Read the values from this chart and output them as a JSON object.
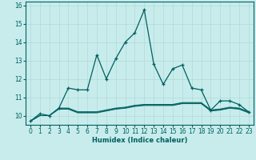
{
  "title": "",
  "xlabel": "Humidex (Indice chaleur)",
  "ylabel": "",
  "background_color": "#c8ecec",
  "grid_color": "#b0d8d8",
  "line_color": "#006060",
  "xlim": [
    -0.5,
    23.5
  ],
  "ylim": [
    9.5,
    16.2
  ],
  "xticks": [
    0,
    1,
    2,
    3,
    4,
    5,
    6,
    7,
    8,
    9,
    10,
    11,
    12,
    13,
    14,
    15,
    16,
    17,
    18,
    19,
    20,
    21,
    22,
    23
  ],
  "yticks": [
    10,
    11,
    12,
    13,
    14,
    15,
    16
  ],
  "series1_x": [
    0,
    1,
    2,
    3,
    4,
    5,
    6,
    7,
    8,
    9,
    10,
    11,
    12,
    13,
    14,
    15,
    16,
    17,
    18,
    19,
    20,
    21,
    22,
    23
  ],
  "series1_y": [
    9.7,
    10.1,
    10.0,
    10.4,
    11.5,
    11.4,
    11.4,
    13.3,
    12.0,
    13.1,
    14.0,
    14.5,
    15.75,
    12.8,
    11.7,
    12.55,
    12.75,
    11.5,
    11.4,
    10.3,
    10.8,
    10.8,
    10.6,
    10.2
  ],
  "series2_x": [
    0,
    1,
    2,
    3,
    4,
    5,
    6,
    7,
    8,
    9,
    10,
    11,
    12,
    13,
    14,
    15,
    16,
    17,
    18,
    19,
    20,
    21,
    22,
    23
  ],
  "series2_y": [
    9.7,
    10.0,
    10.0,
    10.35,
    10.35,
    10.15,
    10.15,
    10.15,
    10.25,
    10.35,
    10.4,
    10.5,
    10.55,
    10.55,
    10.55,
    10.55,
    10.65,
    10.65,
    10.65,
    10.25,
    10.3,
    10.4,
    10.35,
    10.15
  ],
  "series3_x": [
    0,
    1,
    2,
    3,
    4,
    5,
    6,
    7,
    8,
    9,
    10,
    11,
    12,
    13,
    14,
    15,
    16,
    17,
    18,
    19,
    20,
    21,
    22,
    23
  ],
  "series3_y": [
    9.7,
    10.0,
    10.0,
    10.38,
    10.38,
    10.18,
    10.18,
    10.18,
    10.28,
    10.38,
    10.43,
    10.53,
    10.58,
    10.58,
    10.58,
    10.58,
    10.68,
    10.68,
    10.68,
    10.28,
    10.33,
    10.43,
    10.38,
    10.18
  ],
  "series4_x": [
    0,
    1,
    2,
    3,
    4,
    5,
    6,
    7,
    8,
    9,
    10,
    11,
    12,
    13,
    14,
    15,
    16,
    17,
    18,
    19,
    20,
    21,
    22,
    23
  ],
  "series4_y": [
    9.7,
    10.0,
    10.0,
    10.41,
    10.41,
    10.21,
    10.21,
    10.21,
    10.31,
    10.41,
    10.46,
    10.56,
    10.61,
    10.61,
    10.61,
    10.61,
    10.71,
    10.71,
    10.71,
    10.31,
    10.36,
    10.46,
    10.41,
    10.21
  ]
}
